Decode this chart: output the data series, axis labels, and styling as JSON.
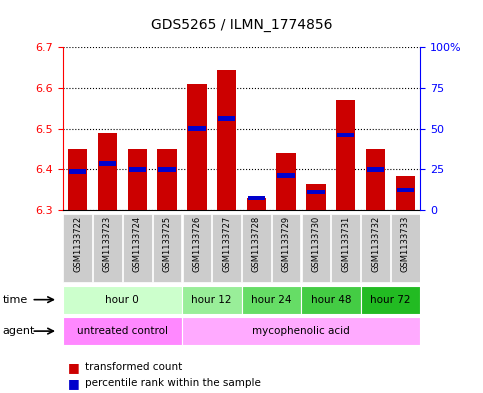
{
  "title": "GDS5265 / ILMN_1774856",
  "samples": [
    "GSM1133722",
    "GSM1133723",
    "GSM1133724",
    "GSM1133725",
    "GSM1133726",
    "GSM1133727",
    "GSM1133728",
    "GSM1133729",
    "GSM1133730",
    "GSM1133731",
    "GSM1133732",
    "GSM1133733"
  ],
  "transformed_count": [
    6.45,
    6.49,
    6.45,
    6.45,
    6.61,
    6.645,
    6.33,
    6.44,
    6.365,
    6.57,
    6.45,
    6.385
  ],
  "percentile_rank": [
    6.395,
    6.415,
    6.4,
    6.4,
    6.5,
    6.525,
    6.33,
    6.385,
    6.345,
    6.485,
    6.4,
    6.35
  ],
  "bar_bottom": 6.3,
  "ylim": [
    6.3,
    6.7
  ],
  "yticks_left": [
    6.3,
    6.4,
    6.5,
    6.6,
    6.7
  ],
  "yticks_right": [
    0,
    25,
    50,
    75,
    100
  ],
  "bar_color": "#cc0000",
  "percentile_color": "#0000cc",
  "time_groups": [
    {
      "label": "hour 0",
      "start": 0,
      "end": 4
    },
    {
      "label": "hour 12",
      "start": 4,
      "end": 6
    },
    {
      "label": "hour 24",
      "start": 6,
      "end": 8
    },
    {
      "label": "hour 48",
      "start": 8,
      "end": 10
    },
    {
      "label": "hour 72",
      "start": 10,
      "end": 12
    }
  ],
  "time_colors": [
    "#ccffcc",
    "#99ee99",
    "#66dd66",
    "#44cc44",
    "#22bb22"
  ],
  "agent_groups": [
    {
      "label": "untreated control",
      "start": 0,
      "end": 4
    },
    {
      "label": "mycophenolic acid",
      "start": 4,
      "end": 12
    }
  ],
  "agent_colors": [
    "#ff88ff",
    "#ffaaff"
  ],
  "bar_width": 0.65,
  "figsize": [
    4.83,
    3.93
  ],
  "dpi": 100
}
